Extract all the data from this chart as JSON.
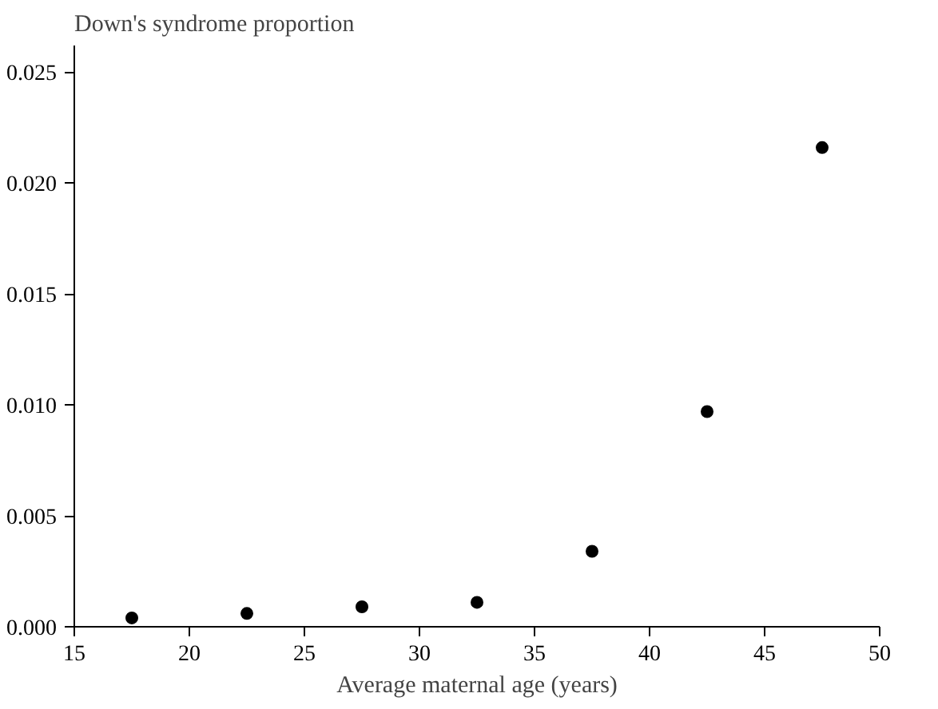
{
  "chart_data": {
    "type": "scatter",
    "xlabel": "Average maternal age (years)",
    "ylabel": "Down's syndrome proportion",
    "x": [
      17.5,
      22.5,
      27.5,
      32.5,
      37.5,
      42.5,
      47.5
    ],
    "series": [
      {
        "color": "#000000",
        "values": [
          0.0004,
          0.0006,
          0.0009,
          0.0011,
          0.0034,
          0.0097,
          0.0216
        ]
      }
    ],
    "xlim": [
      15,
      50
    ],
    "ylim": [
      0,
      0.0262
    ],
    "xticks": [
      15,
      20,
      25,
      30,
      35,
      40,
      45,
      50
    ],
    "yticks": [
      {
        "value": 0,
        "label": "0.000"
      },
      {
        "value": 0.005,
        "label": "0.005"
      },
      {
        "value": 0.01,
        "label": "0.010"
      },
      {
        "value": 0.015,
        "label": "0.015"
      },
      {
        "value": 0.02,
        "label": "0.020"
      },
      {
        "value": 0.025,
        "label": "0.025"
      }
    ],
    "grid": false,
    "marker": "circle"
  }
}
